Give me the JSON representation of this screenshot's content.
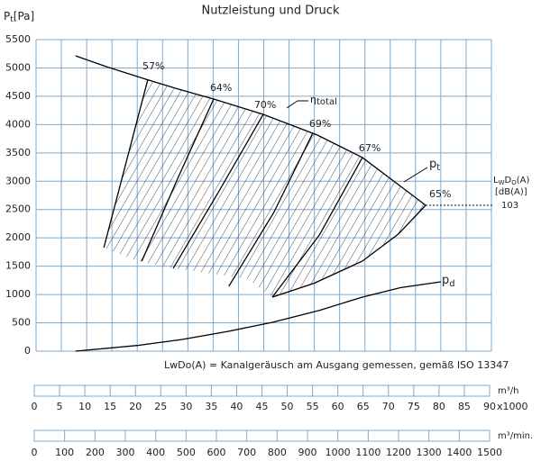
{
  "chart_data": {
    "type": "line",
    "title": "Nutzleistung und Druck",
    "y_label": {
      "symbol": "P",
      "subscript": "t",
      "unit": "[Pa]"
    },
    "ylim": [
      0,
      5500
    ],
    "yticks": [
      0,
      500,
      1000,
      1500,
      2000,
      2500,
      3000,
      3500,
      4000,
      4500,
      5000,
      5500
    ],
    "xlim": [
      0,
      90
    ],
    "grid": true,
    "series": [
      {
        "name": "p",
        "subscript": "t",
        "color": "#000000",
        "x": [
          7.8,
          14,
          21.7,
          28,
          35.1,
          44.9,
          55.6,
          64.5,
          71.6,
          77
        ],
        "y": [
          5214,
          5020,
          4800,
          4630,
          4451,
          4180,
          3815,
          3418,
          2941,
          2575
        ]
      },
      {
        "name": "p",
        "subscript": "d",
        "color": "#000000",
        "x": [
          7.8,
          20,
          28.9,
          38,
          46.7,
          56,
          64.5,
          72,
          80
        ],
        "y": [
          0,
          100,
          207,
          350,
          509,
          720,
          954,
          1120,
          1224
        ]
      }
    ],
    "efficiency_lines": [
      {
        "name": "57%",
        "x": [
          13.4,
          22.1
        ],
        "y": [
          1828,
          4800
        ]
      },
      {
        "name": "64%",
        "x": [
          20.9,
          28,
          35.1
        ],
        "y": [
          1590,
          3050,
          4451
        ]
      },
      {
        "name": "70%",
        "x": [
          27.1,
          36,
          44.9
        ],
        "y": [
          1462,
          2800,
          4180
        ]
      },
      {
        "name": "69%",
        "x": [
          38.1,
          47,
          54.7
        ],
        "y": [
          1145,
          2450,
          3850
        ]
      },
      {
        "name": "67%",
        "x": [
          46.7,
          56,
          64.5
        ],
        "y": [
          954,
          2050,
          3418
        ]
      },
      {
        "name": "65%",
        "x": [
          46.7,
          55,
          64.5,
          71.6,
          77
        ],
        "y": [
          954,
          1200,
          1590,
          2066,
          2575
        ]
      }
    ],
    "operating_region": {
      "x": [
        13.4,
        22.1,
        28,
        35.1,
        44.9,
        55.6,
        64.5,
        71.6,
        77,
        71.6,
        64.5,
        55,
        46.7,
        42,
        36,
        27.1,
        20
      ],
      "y": [
        1828,
        4800,
        4630,
        4451,
        4180,
        3815,
        3418,
        2941,
        2575,
        2066,
        1590,
        1200,
        954,
        1270,
        1351,
        1462,
        1590
      ]
    },
    "efficiency_label": {
      "symbol": "η",
      "text": "total"
    },
    "noise": {
      "label_parts": [
        "L",
        "W",
        "D",
        "O",
        "(A)"
      ],
      "unit": "[dB(A)]",
      "value": 103
    },
    "footnote": "LwDo(A) = Kanalgeräusch am Ausgang gemessen, gemäß ISO 13347",
    "scales": [
      {
        "label": "m³/h",
        "multiplier": "x1000",
        "xlim": [
          0,
          90
        ],
        "xticks": [
          0,
          5,
          10,
          15,
          20,
          25,
          30,
          35,
          40,
          45,
          50,
          55,
          60,
          65,
          70,
          75,
          80,
          85,
          90
        ]
      },
      {
        "label": "m³/min.",
        "xlim": [
          0,
          1500
        ],
        "xticks": [
          0,
          100,
          200,
          300,
          400,
          500,
          600,
          700,
          800,
          900,
          1000,
          1100,
          1200,
          1300,
          1400,
          1500
        ]
      }
    ]
  }
}
